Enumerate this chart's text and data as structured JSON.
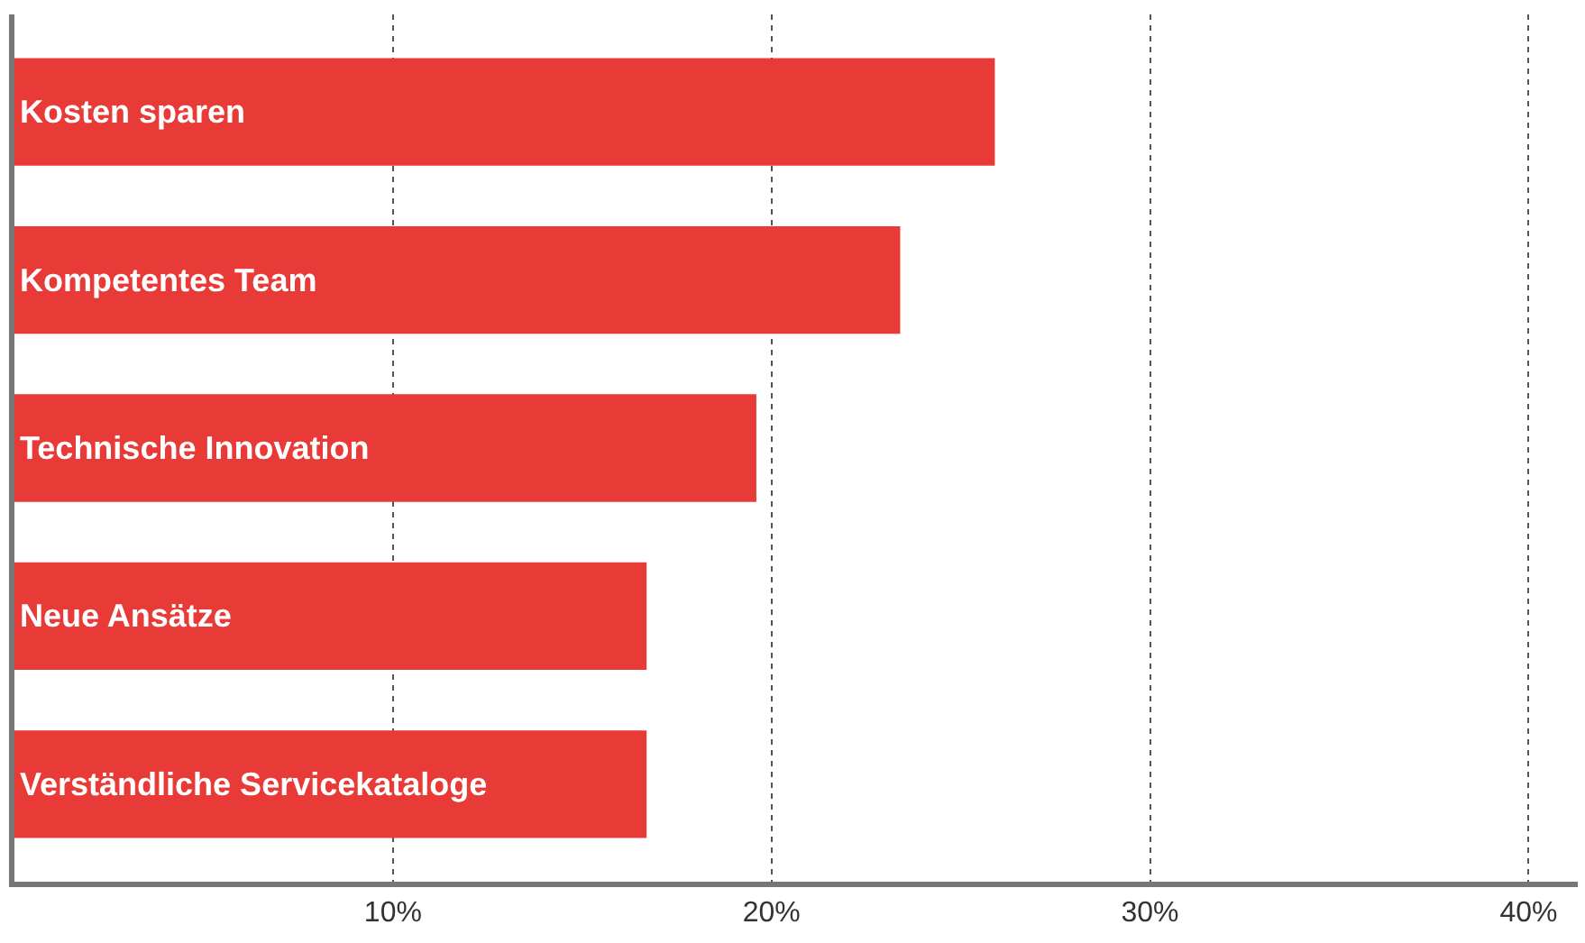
{
  "chart_data": {
    "type": "bar",
    "orientation": "horizontal",
    "categories": [
      "Kosten sparen",
      "Kompetentes Team",
      "Technische Innovation",
      "Neue Ansätze",
      "Verständliche Servicekataloge"
    ],
    "values": [
      25.9,
      23.4,
      19.6,
      16.7,
      16.7
    ],
    "color": "#e83a36",
    "xlim": [
      0,
      41.3
    ],
    "xticks": [
      {
        "value": 10,
        "label": "10%"
      },
      {
        "value": 20,
        "label": "20%"
      },
      {
        "value": 30,
        "label": "30%"
      },
      {
        "value": 40,
        "label": "40%"
      }
    ],
    "grid": "x",
    "tick_labels": "x"
  }
}
